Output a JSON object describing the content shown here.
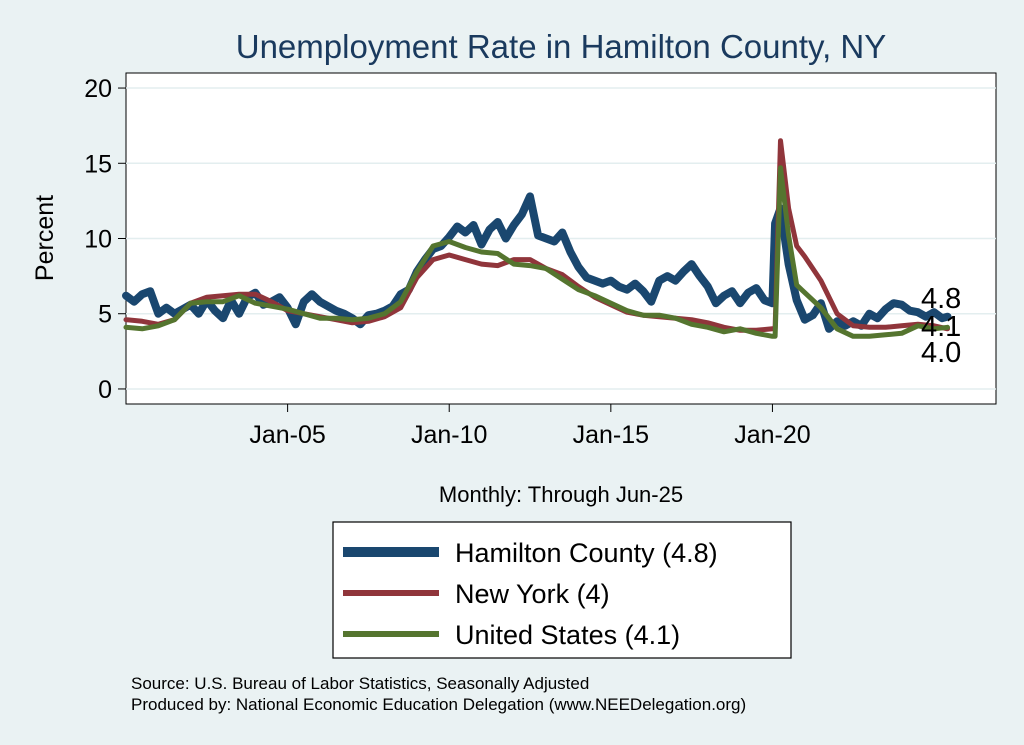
{
  "chart_data": {
    "type": "line",
    "title": "Unemployment Rate in Hamilton  County, NY",
    "ylabel": "Percent",
    "xlabel": "Monthly: Through Jun-25",
    "ylim": [
      -1,
      21
    ],
    "xlim": [
      "2000-01",
      "2026-12"
    ],
    "yticks": [
      0,
      5,
      10,
      15,
      20
    ],
    "xticks": [
      {
        "label": "Jan-05",
        "date": "2005-01"
      },
      {
        "label": "Jan-10",
        "date": "2010-01"
      },
      {
        "label": "Jan-15",
        "date": "2015-01"
      },
      {
        "label": "Jan-20",
        "date": "2020-01"
      }
    ],
    "grid": true,
    "legend_position": "bottom",
    "series": [
      {
        "name": "Hamilton  County (4.8)",
        "color": "#1a476f",
        "width": 8,
        "end_label": "4.8",
        "points": [
          [
            "2000-01",
            6.2
          ],
          [
            "2000-04",
            5.8
          ],
          [
            "2000-07",
            6.3
          ],
          [
            "2000-10",
            6.5
          ],
          [
            "2001-01",
            5.0
          ],
          [
            "2001-04",
            5.4
          ],
          [
            "2001-07",
            5.0
          ],
          [
            "2001-10",
            5.3
          ],
          [
            "2002-01",
            5.6
          ],
          [
            "2002-04",
            5.0
          ],
          [
            "2002-07",
            5.9
          ],
          [
            "2002-10",
            5.2
          ],
          [
            "2003-01",
            4.7
          ],
          [
            "2003-04",
            5.9
          ],
          [
            "2003-07",
            5.0
          ],
          [
            "2003-10",
            6.1
          ],
          [
            "2004-01",
            6.4
          ],
          [
            "2004-04",
            5.6
          ],
          [
            "2004-07",
            5.8
          ],
          [
            "2004-10",
            6.1
          ],
          [
            "2005-01",
            5.4
          ],
          [
            "2005-04",
            4.3
          ],
          [
            "2005-07",
            5.8
          ],
          [
            "2005-10",
            6.3
          ],
          [
            "2006-01",
            5.8
          ],
          [
            "2006-04",
            5.5
          ],
          [
            "2006-07",
            5.2
          ],
          [
            "2006-10",
            5.0
          ],
          [
            "2007-01",
            4.7
          ],
          [
            "2007-04",
            4.3
          ],
          [
            "2007-07",
            4.9
          ],
          [
            "2007-10",
            5.0
          ],
          [
            "2008-01",
            5.2
          ],
          [
            "2008-04",
            5.5
          ],
          [
            "2008-07",
            6.3
          ],
          [
            "2008-10",
            6.6
          ],
          [
            "2009-01",
            7.8
          ],
          [
            "2009-04",
            8.6
          ],
          [
            "2009-07",
            9.3
          ],
          [
            "2009-10",
            9.5
          ],
          [
            "2010-01",
            10.1
          ],
          [
            "2010-04",
            10.8
          ],
          [
            "2010-07",
            10.4
          ],
          [
            "2010-10",
            10.9
          ],
          [
            "2011-01",
            9.6
          ],
          [
            "2011-04",
            10.6
          ],
          [
            "2011-07",
            11.1
          ],
          [
            "2011-10",
            10.0
          ],
          [
            "2012-01",
            10.9
          ],
          [
            "2012-04",
            11.6
          ],
          [
            "2012-07",
            12.8
          ],
          [
            "2012-10",
            10.2
          ],
          [
            "2013-01",
            10.0
          ],
          [
            "2013-04",
            9.8
          ],
          [
            "2013-07",
            10.4
          ],
          [
            "2013-10",
            9.1
          ],
          [
            "2014-01",
            8.1
          ],
          [
            "2014-04",
            7.4
          ],
          [
            "2014-07",
            7.2
          ],
          [
            "2014-10",
            7.0
          ],
          [
            "2015-01",
            7.2
          ],
          [
            "2015-04",
            6.8
          ],
          [
            "2015-07",
            6.6
          ],
          [
            "2015-10",
            7.0
          ],
          [
            "2016-01",
            6.5
          ],
          [
            "2016-04",
            5.8
          ],
          [
            "2016-07",
            7.2
          ],
          [
            "2016-10",
            7.5
          ],
          [
            "2017-01",
            7.2
          ],
          [
            "2017-04",
            7.8
          ],
          [
            "2017-07",
            8.3
          ],
          [
            "2017-10",
            7.5
          ],
          [
            "2018-01",
            6.8
          ],
          [
            "2018-04",
            5.7
          ],
          [
            "2018-07",
            6.2
          ],
          [
            "2018-10",
            6.5
          ],
          [
            "2019-01",
            5.7
          ],
          [
            "2019-04",
            6.4
          ],
          [
            "2019-07",
            6.7
          ],
          [
            "2019-10",
            5.9
          ],
          [
            "2020-01",
            5.7
          ],
          [
            "2020-02",
            11.0
          ],
          [
            "2020-04",
            12.0
          ],
          [
            "2020-07",
            8.3
          ],
          [
            "2020-10",
            5.9
          ],
          [
            "2021-01",
            4.6
          ],
          [
            "2021-04",
            4.9
          ],
          [
            "2021-07",
            5.7
          ],
          [
            "2021-10",
            4.0
          ],
          [
            "2022-01",
            4.5
          ],
          [
            "2022-04",
            4.2
          ],
          [
            "2022-07",
            4.5
          ],
          [
            "2022-10",
            4.2
          ],
          [
            "2023-01",
            5.0
          ],
          [
            "2023-04",
            4.7
          ],
          [
            "2023-07",
            5.3
          ],
          [
            "2023-10",
            5.7
          ],
          [
            "2024-01",
            5.6
          ],
          [
            "2024-04",
            5.2
          ],
          [
            "2024-07",
            5.1
          ],
          [
            "2024-10",
            4.8
          ],
          [
            "2025-01",
            5.1
          ],
          [
            "2025-04",
            4.7
          ],
          [
            "2025-06",
            4.8
          ]
        ]
      },
      {
        "name": "New York (4)",
        "color": "#90353b",
        "width": 5,
        "end_label": "4.0",
        "points": [
          [
            "2000-01",
            4.6
          ],
          [
            "2000-07",
            4.5
          ],
          [
            "2001-01",
            4.3
          ],
          [
            "2001-07",
            4.6
          ],
          [
            "2002-01",
            5.7
          ],
          [
            "2002-07",
            6.1
          ],
          [
            "2003-01",
            6.2
          ],
          [
            "2003-07",
            6.3
          ],
          [
            "2004-01",
            6.3
          ],
          [
            "2004-07",
            5.8
          ],
          [
            "2005-01",
            5.2
          ],
          [
            "2005-07",
            5.0
          ],
          [
            "2006-01",
            4.8
          ],
          [
            "2006-07",
            4.6
          ],
          [
            "2007-01",
            4.4
          ],
          [
            "2007-07",
            4.5
          ],
          [
            "2008-01",
            4.8
          ],
          [
            "2008-07",
            5.4
          ],
          [
            "2009-01",
            7.4
          ],
          [
            "2009-07",
            8.6
          ],
          [
            "2010-01",
            8.9
          ],
          [
            "2010-07",
            8.6
          ],
          [
            "2011-01",
            8.3
          ],
          [
            "2011-07",
            8.2
          ],
          [
            "2012-01",
            8.6
          ],
          [
            "2012-07",
            8.6
          ],
          [
            "2013-01",
            8.0
          ],
          [
            "2013-07",
            7.6
          ],
          [
            "2014-01",
            6.8
          ],
          [
            "2014-07",
            6.1
          ],
          [
            "2015-01",
            5.6
          ],
          [
            "2015-07",
            5.1
          ],
          [
            "2016-01",
            4.9
          ],
          [
            "2016-07",
            4.8
          ],
          [
            "2017-01",
            4.7
          ],
          [
            "2017-07",
            4.6
          ],
          [
            "2018-01",
            4.4
          ],
          [
            "2018-07",
            4.1
          ],
          [
            "2019-01",
            3.9
          ],
          [
            "2019-07",
            3.9
          ],
          [
            "2020-01",
            4.0
          ],
          [
            "2020-02",
            4.0
          ],
          [
            "2020-04",
            16.5
          ],
          [
            "2020-07",
            12.0
          ],
          [
            "2020-10",
            9.5
          ],
          [
            "2021-01",
            8.8
          ],
          [
            "2021-07",
            7.2
          ],
          [
            "2022-01",
            5.0
          ],
          [
            "2022-07",
            4.2
          ],
          [
            "2023-01",
            4.1
          ],
          [
            "2023-07",
            4.1
          ],
          [
            "2024-01",
            4.2
          ],
          [
            "2024-07",
            4.3
          ],
          [
            "2025-01",
            4.2
          ],
          [
            "2025-06",
            4.0
          ]
        ]
      },
      {
        "name": "United States (4.1)",
        "color": "#55752f",
        "width": 5,
        "end_label": "4.1",
        "points": [
          [
            "2000-01",
            4.1
          ],
          [
            "2000-07",
            4.0
          ],
          [
            "2001-01",
            4.2
          ],
          [
            "2001-07",
            4.6
          ],
          [
            "2002-01",
            5.7
          ],
          [
            "2002-07",
            5.8
          ],
          [
            "2003-01",
            5.8
          ],
          [
            "2003-07",
            6.2
          ],
          [
            "2004-01",
            5.7
          ],
          [
            "2004-07",
            5.5
          ],
          [
            "2005-01",
            5.3
          ],
          [
            "2005-07",
            5.0
          ],
          [
            "2006-01",
            4.7
          ],
          [
            "2006-07",
            4.7
          ],
          [
            "2007-01",
            4.6
          ],
          [
            "2007-07",
            4.7
          ],
          [
            "2008-01",
            5.0
          ],
          [
            "2008-07",
            5.8
          ],
          [
            "2009-01",
            7.8
          ],
          [
            "2009-07",
            9.5
          ],
          [
            "2010-01",
            9.8
          ],
          [
            "2010-07",
            9.4
          ],
          [
            "2011-01",
            9.1
          ],
          [
            "2011-07",
            9.0
          ],
          [
            "2012-01",
            8.3
          ],
          [
            "2012-07",
            8.2
          ],
          [
            "2013-01",
            8.0
          ],
          [
            "2013-07",
            7.3
          ],
          [
            "2014-01",
            6.6
          ],
          [
            "2014-07",
            6.2
          ],
          [
            "2015-01",
            5.7
          ],
          [
            "2015-07",
            5.2
          ],
          [
            "2016-01",
            4.9
          ],
          [
            "2016-07",
            4.9
          ],
          [
            "2017-01",
            4.7
          ],
          [
            "2017-07",
            4.3
          ],
          [
            "2018-01",
            4.1
          ],
          [
            "2018-07",
            3.8
          ],
          [
            "2019-01",
            4.0
          ],
          [
            "2019-07",
            3.7
          ],
          [
            "2020-01",
            3.5
          ],
          [
            "2020-02",
            3.5
          ],
          [
            "2020-04",
            14.7
          ],
          [
            "2020-07",
            10.2
          ],
          [
            "2020-10",
            6.9
          ],
          [
            "2021-01",
            6.4
          ],
          [
            "2021-07",
            5.4
          ],
          [
            "2022-01",
            4.0
          ],
          [
            "2022-07",
            3.5
          ],
          [
            "2023-01",
            3.5
          ],
          [
            "2023-07",
            3.6
          ],
          [
            "2024-01",
            3.7
          ],
          [
            "2024-07",
            4.2
          ],
          [
            "2025-01",
            4.0
          ],
          [
            "2025-06",
            4.1
          ]
        ]
      }
    ]
  },
  "notes": [
    "Source: U.S. Bureau of Labor Statistics, Seasonally Adjusted",
    "Produced by: National Economic Education Delegation (www.NEEDelegation.org)"
  ]
}
